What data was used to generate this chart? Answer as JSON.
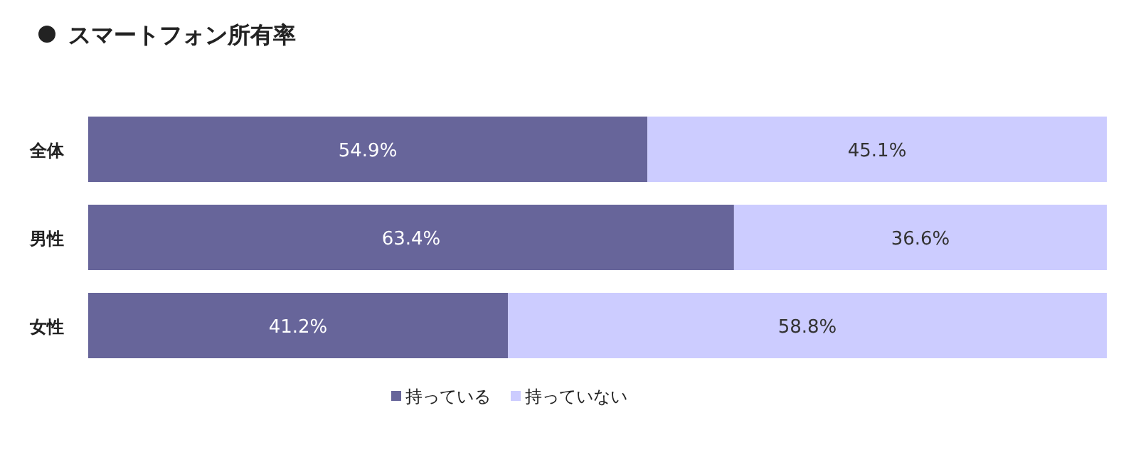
{
  "chart_data": {
    "type": "bar",
    "orientation": "horizontal",
    "stacked": true,
    "title": "スマートフォン所有率",
    "categories": [
      "全体",
      "男性",
      "女性"
    ],
    "series": [
      {
        "name": "持っている",
        "color": "#67659a",
        "values": [
          54.9,
          63.4,
          41.2
        ],
        "value_labels": [
          "54.9%",
          "63.4%",
          "41.2%"
        ]
      },
      {
        "name": "持っていない",
        "color": "#ccccff",
        "values": [
          45.1,
          36.6,
          58.8
        ],
        "value_labels": [
          "45.1%",
          "36.6%",
          "58.8%"
        ]
      }
    ],
    "legend": "bottom"
  }
}
